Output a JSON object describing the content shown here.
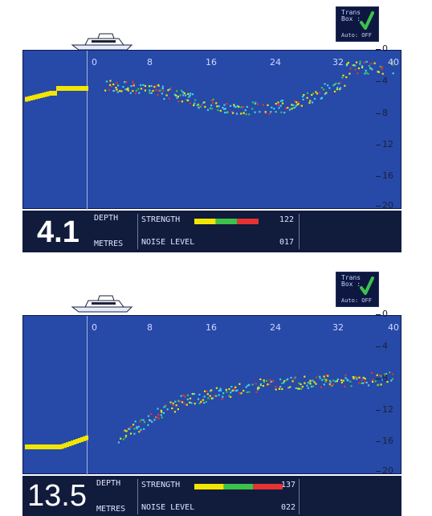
{
  "trans_box": {
    "line1": "Trans",
    "line2": "Box :",
    "auto_label": "Auto: OFF"
  },
  "axes": {
    "x_ticks": [
      "0",
      "8",
      "16",
      "24",
      "32",
      "40"
    ],
    "y_ticks": [
      "0",
      "4",
      "8",
      "12",
      "16",
      "20"
    ]
  },
  "panels": [
    {
      "depth": "4.1",
      "depth_label": "DEPTH",
      "unit": "METRES",
      "strength_label": "STRENGTH",
      "strength_value": "122",
      "strength_fraction": 0.5,
      "noise_label": "NOISE LEVEL",
      "noise_value": "017"
    },
    {
      "depth": "13.5",
      "depth_label": "DEPTH",
      "unit": "METRES",
      "strength_label": "STRENGTH",
      "strength_value": "137",
      "strength_fraction": 0.55,
      "noise_label": "NOISE LEVEL",
      "noise_value": "022"
    }
  ],
  "colors": {
    "screen": "#2749a7",
    "bar": "#111b3c",
    "yellow": "#f2e600",
    "green": "#3cc24b",
    "red": "#e53233",
    "cyan": "#3fd1e6"
  }
}
